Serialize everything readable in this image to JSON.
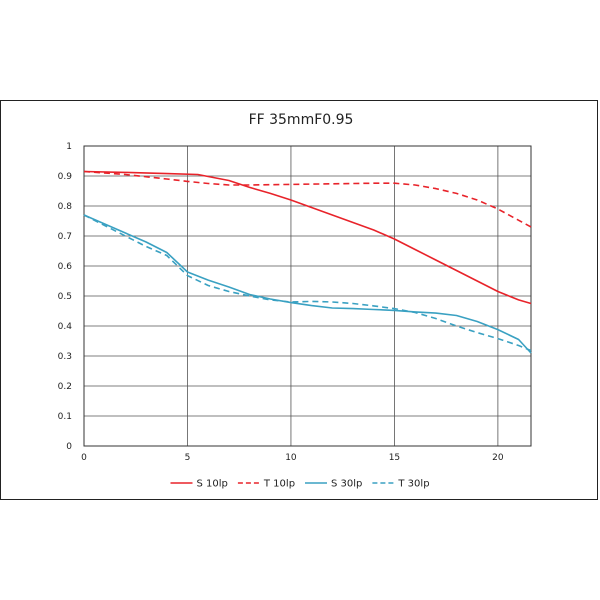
{
  "chart_data": {
    "type": "line",
    "title": "FF 35mmF0.95",
    "xlabel": "",
    "ylabel": "",
    "xlim": [
      0,
      21.6
    ],
    "ylim": [
      0,
      1
    ],
    "xticks": [
      "0",
      "5",
      "10",
      "15",
      "20"
    ],
    "yticks": [
      "0",
      "0.1",
      "0.2",
      "0.3",
      "0.4",
      "0.5",
      "0.6",
      "0.7",
      "0.8",
      "0.9",
      "1"
    ],
    "grid": true,
    "legend_position": "bottom",
    "series": [
      {
        "name": "S 10lp",
        "color": "#e8232a",
        "dash": "solid",
        "points": [
          [
            0,
            0.915
          ],
          [
            2,
            0.912
          ],
          [
            4,
            0.908
          ],
          [
            5.5,
            0.905
          ],
          [
            7,
            0.885
          ],
          [
            8,
            0.862
          ],
          [
            9,
            0.842
          ],
          [
            10,
            0.82
          ],
          [
            11,
            0.795
          ],
          [
            12,
            0.77
          ],
          [
            13,
            0.745
          ],
          [
            14,
            0.72
          ],
          [
            15,
            0.69
          ],
          [
            16,
            0.655
          ],
          [
            17,
            0.62
          ],
          [
            18,
            0.585
          ],
          [
            19,
            0.55
          ],
          [
            20,
            0.515
          ],
          [
            21,
            0.487
          ],
          [
            21.6,
            0.475
          ]
        ]
      },
      {
        "name": "T 10lp",
        "color": "#e8232a",
        "dash": "dashed",
        "points": [
          [
            0,
            0.915
          ],
          [
            2,
            0.905
          ],
          [
            4,
            0.89
          ],
          [
            5,
            0.882
          ],
          [
            6,
            0.875
          ],
          [
            7,
            0.87
          ],
          [
            8,
            0.87
          ],
          [
            10,
            0.872
          ],
          [
            12,
            0.874
          ],
          [
            14,
            0.876
          ],
          [
            15,
            0.876
          ],
          [
            16,
            0.87
          ],
          [
            17,
            0.858
          ],
          [
            18,
            0.842
          ],
          [
            19,
            0.82
          ],
          [
            20,
            0.79
          ],
          [
            20.8,
            0.76
          ],
          [
            21.6,
            0.73
          ]
        ]
      },
      {
        "name": "S 30lp",
        "color": "#3aa1c2",
        "dash": "solid",
        "points": [
          [
            0,
            0.77
          ],
          [
            1,
            0.74
          ],
          [
            2,
            0.71
          ],
          [
            3,
            0.68
          ],
          [
            4,
            0.645
          ],
          [
            5,
            0.58
          ],
          [
            6,
            0.553
          ],
          [
            7,
            0.53
          ],
          [
            8,
            0.505
          ],
          [
            9,
            0.49
          ],
          [
            10,
            0.478
          ],
          [
            11,
            0.468
          ],
          [
            12,
            0.46
          ],
          [
            13,
            0.458
          ],
          [
            14,
            0.455
          ],
          [
            15,
            0.452
          ],
          [
            16,
            0.447
          ],
          [
            17,
            0.443
          ],
          [
            18,
            0.435
          ],
          [
            19,
            0.415
          ],
          [
            20,
            0.388
          ],
          [
            21,
            0.355
          ],
          [
            21.6,
            0.31
          ]
        ]
      },
      {
        "name": "T 30lp",
        "color": "#3aa1c2",
        "dash": "dashed",
        "points": [
          [
            0,
            0.77
          ],
          [
            1,
            0.735
          ],
          [
            2,
            0.7
          ],
          [
            3,
            0.665
          ],
          [
            4,
            0.635
          ],
          [
            5,
            0.568
          ],
          [
            6,
            0.535
          ],
          [
            7,
            0.515
          ],
          [
            8,
            0.5
          ],
          [
            9,
            0.487
          ],
          [
            10,
            0.48
          ],
          [
            11,
            0.482
          ],
          [
            12,
            0.48
          ],
          [
            13,
            0.475
          ],
          [
            14,
            0.467
          ],
          [
            15,
            0.458
          ],
          [
            16,
            0.445
          ],
          [
            17,
            0.425
          ],
          [
            18,
            0.4
          ],
          [
            19,
            0.378
          ],
          [
            20,
            0.358
          ],
          [
            21,
            0.335
          ],
          [
            21.6,
            0.318
          ]
        ]
      }
    ]
  }
}
